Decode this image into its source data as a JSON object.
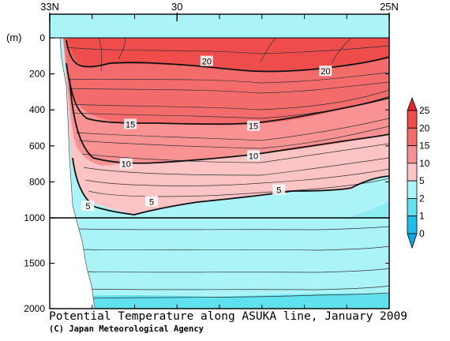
{
  "chart_data": {
    "type": "contour",
    "title": "Potential Temperature along ASUKA line, January 2009",
    "credit": "(C) Japan Meteorological Agency",
    "ylabel": "(m)",
    "xlim": [
      33,
      25
    ],
    "x_ticks": [
      {
        "value": 33,
        "label": "33N"
      },
      {
        "value": 30,
        "label": "30"
      },
      {
        "value": 25,
        "label": "25N"
      }
    ],
    "y_ticks_upper": [
      0,
      200,
      400,
      600,
      800,
      1000
    ],
    "y_ticks_lower": [
      1500,
      2000
    ],
    "y_break_depth": 1000,
    "legend": {
      "position": "right",
      "levels": [
        {
          "label": "25",
          "color": "#e8242a"
        },
        {
          "label": "20",
          "color": "#ef4c4c"
        },
        {
          "label": "15",
          "color": "#f46b6b"
        },
        {
          "label": "10",
          "color": "#f99393"
        },
        {
          "label": "5",
          "color": "#fcc4c4"
        },
        {
          "label": "2",
          "color": "#aaf3f6"
        },
        {
          "label": "1",
          "color": "#5fe1f0"
        },
        {
          "label": "0",
          "color": "#1fbde8"
        }
      ]
    },
    "contour_labels": [
      {
        "text": "20",
        "lat": 29.3,
        "depth": 130
      },
      {
        "text": "20",
        "lat": 26.5,
        "depth": 185
      },
      {
        "text": "15",
        "lat": 31.1,
        "depth": 480
      },
      {
        "text": "15",
        "lat": 28.2,
        "depth": 490
      },
      {
        "text": "10",
        "lat": 31.2,
        "depth": 700
      },
      {
        "text": "10",
        "lat": 28.2,
        "depth": 655
      },
      {
        "text": "5",
        "lat": 32.1,
        "depth": 935
      },
      {
        "text": "5",
        "lat": 30.6,
        "depth": 910
      },
      {
        "text": "5",
        "lat": 27.6,
        "depth": 845
      }
    ]
  }
}
